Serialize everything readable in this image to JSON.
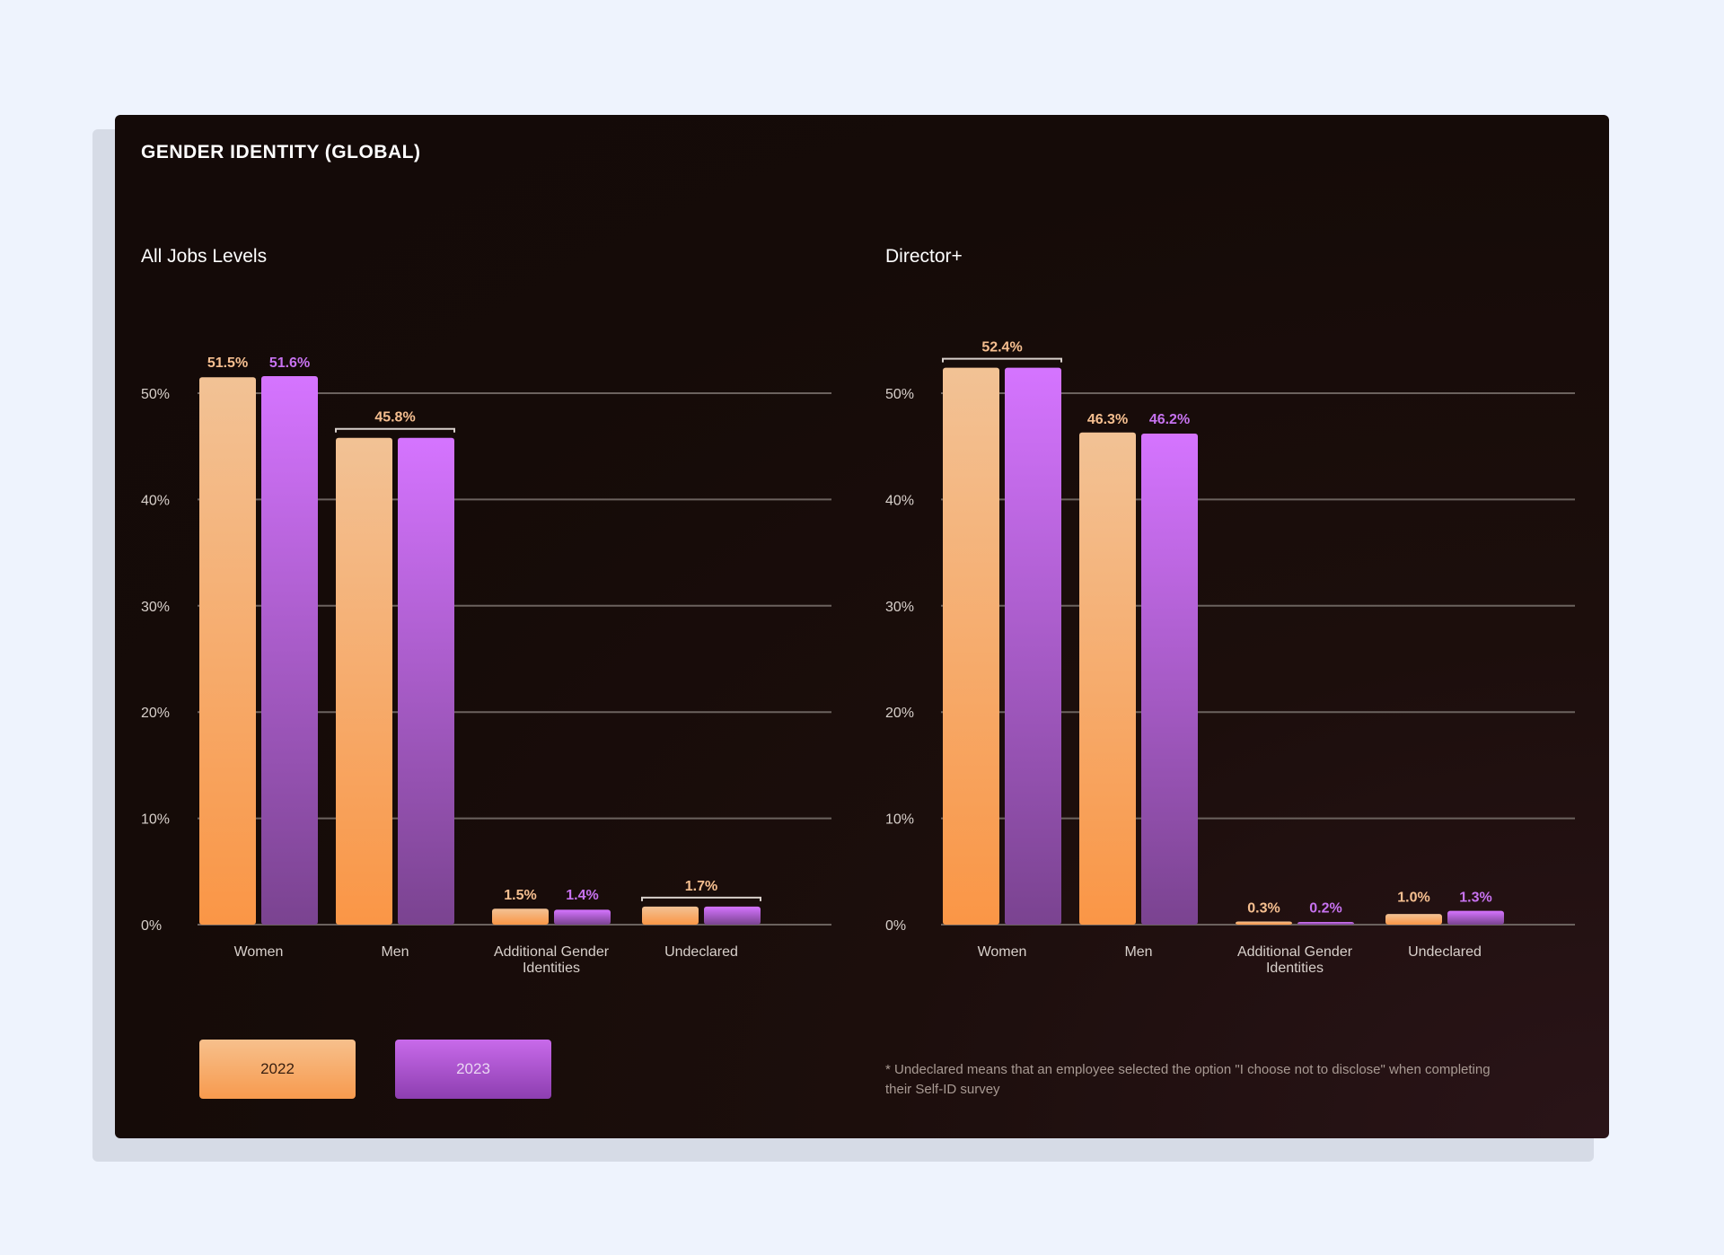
{
  "page": {
    "title": "GENDER IDENTITY (GLOBAL)",
    "footnote": "* Undeclared means that an employee selected the option \"I choose not to disclose\" when completing their Self-ID survey"
  },
  "legend": {
    "items": [
      {
        "label": "2022",
        "color": "#f7a35e"
      },
      {
        "label": "2023",
        "color": "#b25ad8"
      }
    ]
  },
  "colors": {
    "series_2022_top": "#f2c295",
    "series_2022_bottom": "#fa9646",
    "series_2023_top": "#d574ff",
    "series_2023_bottom": "#7a4390",
    "label_2022": "#f6bf90",
    "label_2023": "#c772f0",
    "gridline": "#6b625e",
    "tick_label": "#d8d0cb"
  },
  "chart_data": [
    {
      "type": "bar",
      "title": "All Jobs Levels",
      "categories": [
        "Women",
        "Men",
        "Additional Gender Identities",
        "Undeclared"
      ],
      "series": [
        {
          "name": "2022",
          "values": [
            51.5,
            45.8,
            1.5,
            1.7
          ]
        },
        {
          "name": "2023",
          "values": [
            51.6,
            45.8,
            1.4,
            1.7
          ]
        }
      ],
      "data_labels": [
        {
          "category": 0,
          "kind": "split",
          "texts": [
            "51.5%",
            "51.6%"
          ]
        },
        {
          "category": 1,
          "kind": "bracket",
          "texts": [
            "45.8%"
          ]
        },
        {
          "category": 2,
          "kind": "split",
          "texts": [
            "1.5%",
            "1.4%"
          ]
        },
        {
          "category": 3,
          "kind": "bracket",
          "texts": [
            "1.7%"
          ]
        }
      ],
      "yticks": [
        "0%",
        "10%",
        "20%",
        "30%",
        "40%",
        "50%"
      ],
      "ylim": [
        0,
        50
      ],
      "grid": true,
      "legend_position": "bottom-left"
    },
    {
      "type": "bar",
      "title": "Director+",
      "categories": [
        "Women",
        "Men",
        "Additional Gender Identities",
        "Undeclared"
      ],
      "series": [
        {
          "name": "2022",
          "values": [
            52.4,
            46.3,
            0.3,
            1.0
          ]
        },
        {
          "name": "2023",
          "values": [
            52.4,
            46.2,
            0.2,
            1.3
          ]
        }
      ],
      "data_labels": [
        {
          "category": 0,
          "kind": "bracket",
          "texts": [
            "52.4%"
          ]
        },
        {
          "category": 1,
          "kind": "split",
          "texts": [
            "46.3%",
            "46.2%"
          ]
        },
        {
          "category": 2,
          "kind": "split",
          "texts": [
            "0.3%",
            "0.2%"
          ]
        },
        {
          "category": 3,
          "kind": "split",
          "texts": [
            "1.0%",
            "1.3%"
          ]
        }
      ],
      "yticks": [
        "0%",
        "10%",
        "20%",
        "30%",
        "40%",
        "50%"
      ],
      "ylim": [
        0,
        50
      ],
      "grid": true,
      "legend_position": "bottom-left"
    }
  ]
}
